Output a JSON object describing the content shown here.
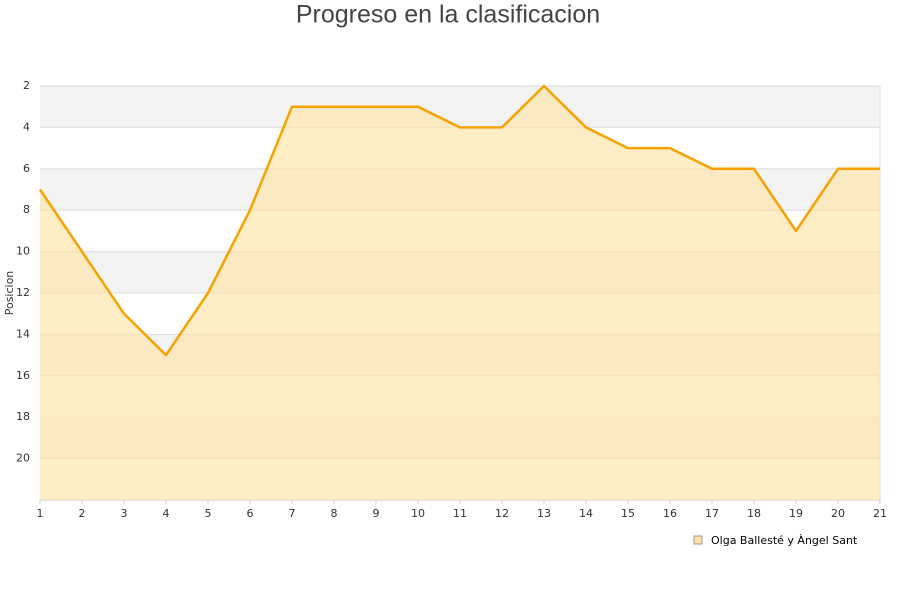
{
  "chart_data": {
    "type": "area",
    "title": "Progreso en la clasificacion",
    "y_label": "Posicion",
    "x": [
      1,
      2,
      3,
      4,
      5,
      6,
      7,
      8,
      9,
      10,
      11,
      12,
      13,
      14,
      15,
      16,
      17,
      18,
      19,
      20,
      21
    ],
    "xlim": [
      1,
      21
    ],
    "xticks": [
      1,
      2,
      3,
      4,
      5,
      6,
      7,
      8,
      9,
      10,
      11,
      12,
      13,
      14,
      15,
      16,
      17,
      18,
      19,
      20,
      21
    ],
    "ylim": [
      2,
      22
    ],
    "yticks": [
      2,
      4,
      6,
      8,
      10,
      12,
      14,
      16,
      18,
      20
    ],
    "y_inverted": true,
    "grid": true,
    "legend": "bottom-right",
    "series": [
      {
        "name": "Olga Ballesté y Àngel Sant",
        "color": "#f5a300",
        "fill": "#ffe3a6",
        "values": [
          7,
          10,
          13,
          15,
          12,
          8,
          3,
          3,
          3,
          3,
          4,
          4,
          2,
          4,
          5,
          5,
          6,
          6,
          9,
          6,
          6
        ]
      }
    ]
  }
}
